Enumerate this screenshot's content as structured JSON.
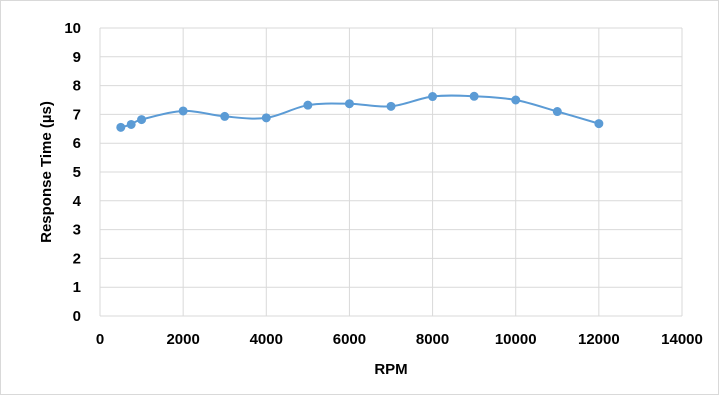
{
  "chart_data": {
    "type": "scatter",
    "title": "",
    "xlabel": "RPM",
    "ylabel": "Response Time (µs)",
    "xlim": [
      0,
      14000
    ],
    "ylim": [
      0,
      10
    ],
    "x_ticks": [
      "0",
      "2000",
      "4000",
      "6000",
      "8000",
      "10000",
      "12000",
      "14000"
    ],
    "y_ticks": [
      "0",
      "1",
      "2",
      "3",
      "4",
      "5",
      "6",
      "7",
      "8",
      "9",
      "10"
    ],
    "grid": true,
    "smoothed_line": true,
    "series": [
      {
        "color": "#5b9bd5",
        "x": [
          500,
          750,
          1000,
          2000,
          3000,
          4000,
          5000,
          6000,
          7000,
          8000,
          9000,
          10000,
          11000,
          12000
        ],
        "y": [
          6.55,
          6.65,
          6.82,
          7.12,
          6.93,
          6.88,
          7.32,
          7.37,
          7.28,
          7.62,
          7.63,
          7.5,
          7.1,
          6.68
        ]
      }
    ]
  }
}
